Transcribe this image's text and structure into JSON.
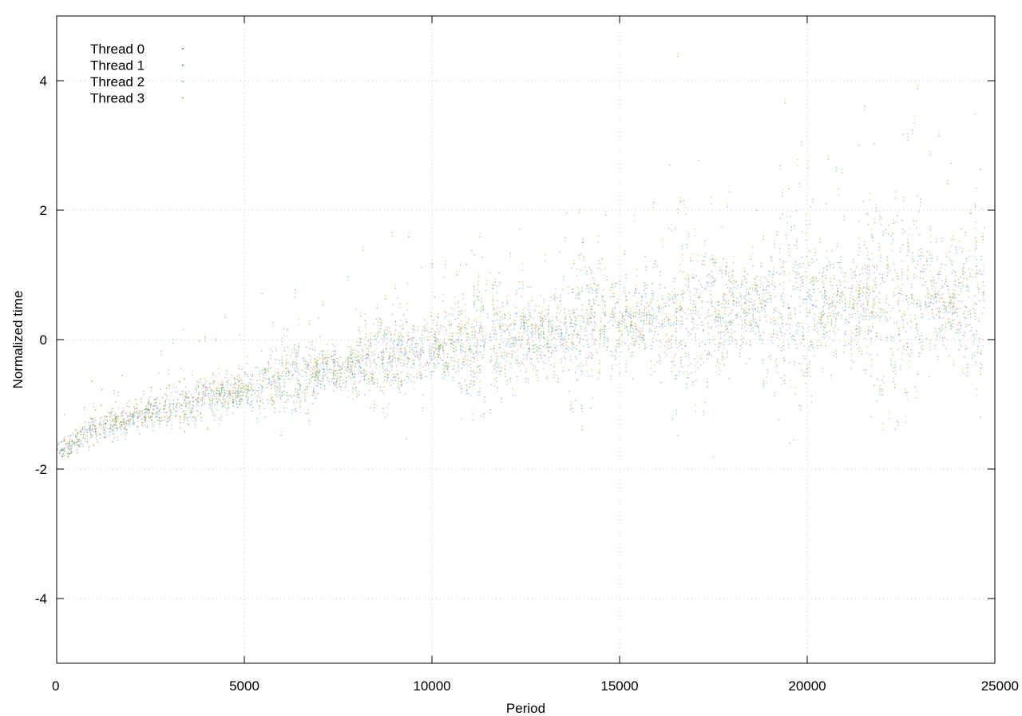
{
  "chart_data": {
    "type": "scatter",
    "title": "",
    "xlabel": "Period",
    "ylabel": "Normalized time",
    "xlim": [
      0,
      25000
    ],
    "ylim": [
      -5,
      5
    ],
    "x_ticks": [
      0,
      5000,
      10000,
      15000,
      20000,
      25000
    ],
    "y_ticks": [
      -4,
      -2,
      0,
      2,
      4
    ],
    "grid": true,
    "legend_position": "top-left",
    "series": [
      {
        "name": "Thread 0",
        "color": "#9467bd",
        "trend": [
          [
            0,
            -1.75
          ],
          [
            1000,
            -1.35
          ],
          [
            3000,
            -1.05
          ],
          [
            5000,
            -0.75
          ],
          [
            10000,
            -0.15
          ],
          [
            15000,
            0.25
          ],
          [
            20000,
            0.5
          ],
          [
            24700,
            0.6
          ]
        ]
      },
      {
        "name": "Thread 1",
        "color": "#2ca02c",
        "trend": [
          [
            0,
            -1.75
          ],
          [
            1000,
            -1.35
          ],
          [
            3000,
            -1.05
          ],
          [
            5000,
            -0.75
          ],
          [
            10000,
            -0.15
          ],
          [
            15000,
            0.25
          ],
          [
            20000,
            0.5
          ],
          [
            24700,
            0.6
          ]
        ]
      },
      {
        "name": "Thread 2",
        "color": "#56b4e9",
        "trend": [
          [
            0,
            -1.75
          ],
          [
            1000,
            -1.4
          ],
          [
            3000,
            -1.1
          ],
          [
            5000,
            -0.8
          ],
          [
            10000,
            -0.2
          ],
          [
            15000,
            0.2
          ],
          [
            20000,
            0.45
          ],
          [
            24700,
            0.55
          ]
        ]
      },
      {
        "name": "Thread 3",
        "color": "#e69f00",
        "trend": [
          [
            0,
            -1.75
          ],
          [
            1000,
            -1.35
          ],
          [
            3000,
            -1.05
          ],
          [
            5000,
            -0.7
          ],
          [
            10000,
            -0.1
          ],
          [
            15000,
            0.3
          ],
          [
            20000,
            0.55
          ],
          [
            24700,
            0.65
          ]
        ]
      }
    ]
  }
}
